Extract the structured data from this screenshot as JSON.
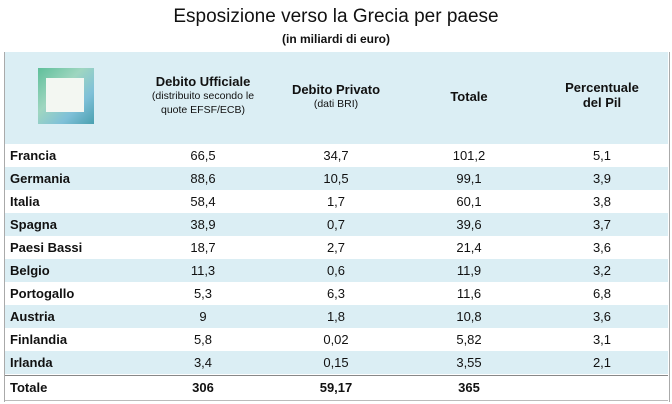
{
  "title": "Esposizione  verso la Grecia per paese",
  "subtitle": "(in miliardi di euro)",
  "header": {
    "col1": {
      "title": "Debito Ufficiale",
      "note": "(distribuito secondo le quote EFSF/ECB)"
    },
    "col2": {
      "title": "Debito Privato",
      "note": "(dati BRI)"
    },
    "col3": {
      "title": "Totale"
    },
    "col4": {
      "title": "Percentuale del Pil"
    }
  },
  "table": {
    "rows": [
      [
        "Francia",
        "66,5",
        "34,7",
        "101,2",
        "5,1"
      ],
      [
        "Germania",
        "88,6",
        "10,5",
        "99,1",
        "3,9"
      ],
      [
        "Italia",
        "58,4",
        "1,7",
        "60,1",
        "3,8"
      ],
      [
        "Spagna",
        "38,9",
        "0,7",
        "39,6",
        "3,7"
      ],
      [
        "Paesi Bassi",
        "18,7",
        "2,7",
        "21,4",
        "3,6"
      ],
      [
        "Belgio",
        "11,3",
        "0,6",
        "11,9",
        "3,2"
      ],
      [
        "Portogallo",
        "5,3",
        "6,3",
        "11,6",
        "6,8"
      ],
      [
        "Austria",
        "9",
        "1,8",
        "10,8",
        "3,6"
      ],
      [
        "Finlandia",
        "5,8",
        "0,02",
        "5,82",
        "3,1"
      ],
      [
        "Irlanda",
        "3,4",
        "0,15",
        "3,55",
        "2,1"
      ]
    ],
    "total": [
      "Totale",
      "306",
      "59,17",
      "365"
    ]
  }
}
